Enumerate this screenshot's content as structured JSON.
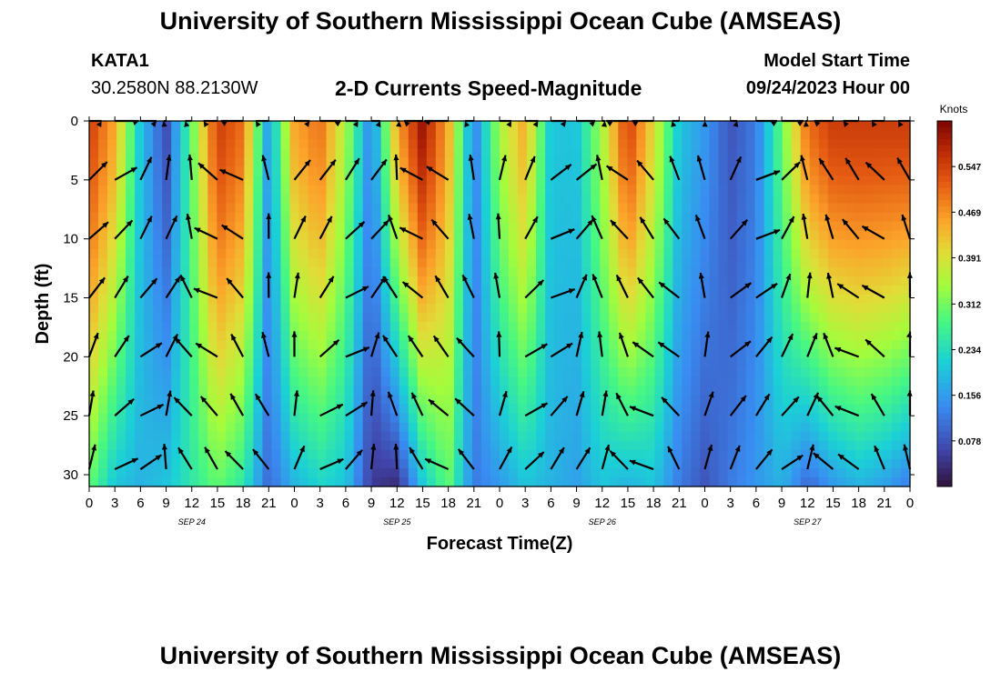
{
  "header": {
    "title": "University of Southern Mississippi Ocean Cube (AMSEAS)",
    "station_id": "KATA1",
    "coordinates": "30.2580N  88.2130W",
    "subtitle": "2-D Currents Speed-Magnitude",
    "model_start_label": "Model Start Time",
    "model_start_value": "09/24/2023 Hour 00"
  },
  "footer": {
    "title": "University of Southern Mississippi Ocean Cube (AMSEAS)"
  },
  "chart_data": {
    "type": "heatmap",
    "title": "2-D Currents Speed-Magnitude",
    "xlabel": "Forecast Time(Z)",
    "ylabel": "Depth (ft)",
    "x_tick_labels": [
      "0",
      "3",
      "6",
      "9",
      "12",
      "15",
      "18",
      "21",
      "0",
      "3",
      "6",
      "9",
      "12",
      "15",
      "18",
      "21",
      "0",
      "3",
      "6",
      "9",
      "12",
      "15",
      "18",
      "21",
      "0",
      "3",
      "6",
      "9",
      "12",
      "15",
      "18",
      "21",
      "0"
    ],
    "date_labels": [
      {
        "label": "SEP 24",
        "hour": 12
      },
      {
        "label": "SEP 25",
        "hour": 36
      },
      {
        "label": "SEP 26",
        "hour": 60
      },
      {
        "label": "SEP 27",
        "hour": 84
      }
    ],
    "xlim_hours": [
      0,
      96
    ],
    "y_ticks": [
      0,
      5,
      10,
      15,
      20,
      25,
      30
    ],
    "ylim_ft": [
      0,
      31
    ],
    "colorbar": {
      "unit": "Knots",
      "tick_labels": [
        "0.547",
        "0.469",
        "0.391",
        "0.312",
        "0.234",
        "0.156",
        "0.078"
      ],
      "range": [
        0.0,
        0.625
      ]
    },
    "speed_profile_surface": {
      "hours": [
        0,
        3,
        6,
        9,
        12,
        15,
        18,
        21,
        24,
        27,
        30,
        33,
        36,
        39,
        42,
        45,
        48,
        51,
        54,
        57,
        60,
        63,
        66,
        69,
        72,
        75,
        78,
        81,
        84,
        87,
        90,
        93,
        96
      ],
      "knots": [
        0.55,
        0.45,
        0.2,
        0.07,
        0.3,
        0.55,
        0.5,
        0.15,
        0.45,
        0.5,
        0.35,
        0.12,
        0.45,
        0.6,
        0.45,
        0.12,
        0.35,
        0.45,
        0.2,
        0.2,
        0.35,
        0.55,
        0.4,
        0.2,
        0.15,
        0.08,
        0.12,
        0.3,
        0.5,
        0.55,
        0.55,
        0.55,
        0.55
      ]
    },
    "speed_profile_bottom": {
      "hours": [
        0,
        3,
        6,
        9,
        12,
        15,
        18,
        21,
        24,
        27,
        30,
        33,
        36,
        39,
        42,
        45,
        48,
        51,
        54,
        57,
        60,
        63,
        66,
        69,
        72,
        75,
        78,
        81,
        84,
        87,
        90,
        93,
        96
      ],
      "knots": [
        0.3,
        0.2,
        0.18,
        0.2,
        0.25,
        0.3,
        0.25,
        0.1,
        0.18,
        0.22,
        0.2,
        0.05,
        0.03,
        0.2,
        0.3,
        0.12,
        0.15,
        0.2,
        0.18,
        0.16,
        0.2,
        0.18,
        0.2,
        0.12,
        0.08,
        0.12,
        0.15,
        0.18,
        0.1,
        0.15,
        0.18,
        0.16,
        0.12
      ]
    },
    "vector_depths_ft": [
      0,
      5,
      10,
      15,
      20,
      25,
      30
    ]
  }
}
